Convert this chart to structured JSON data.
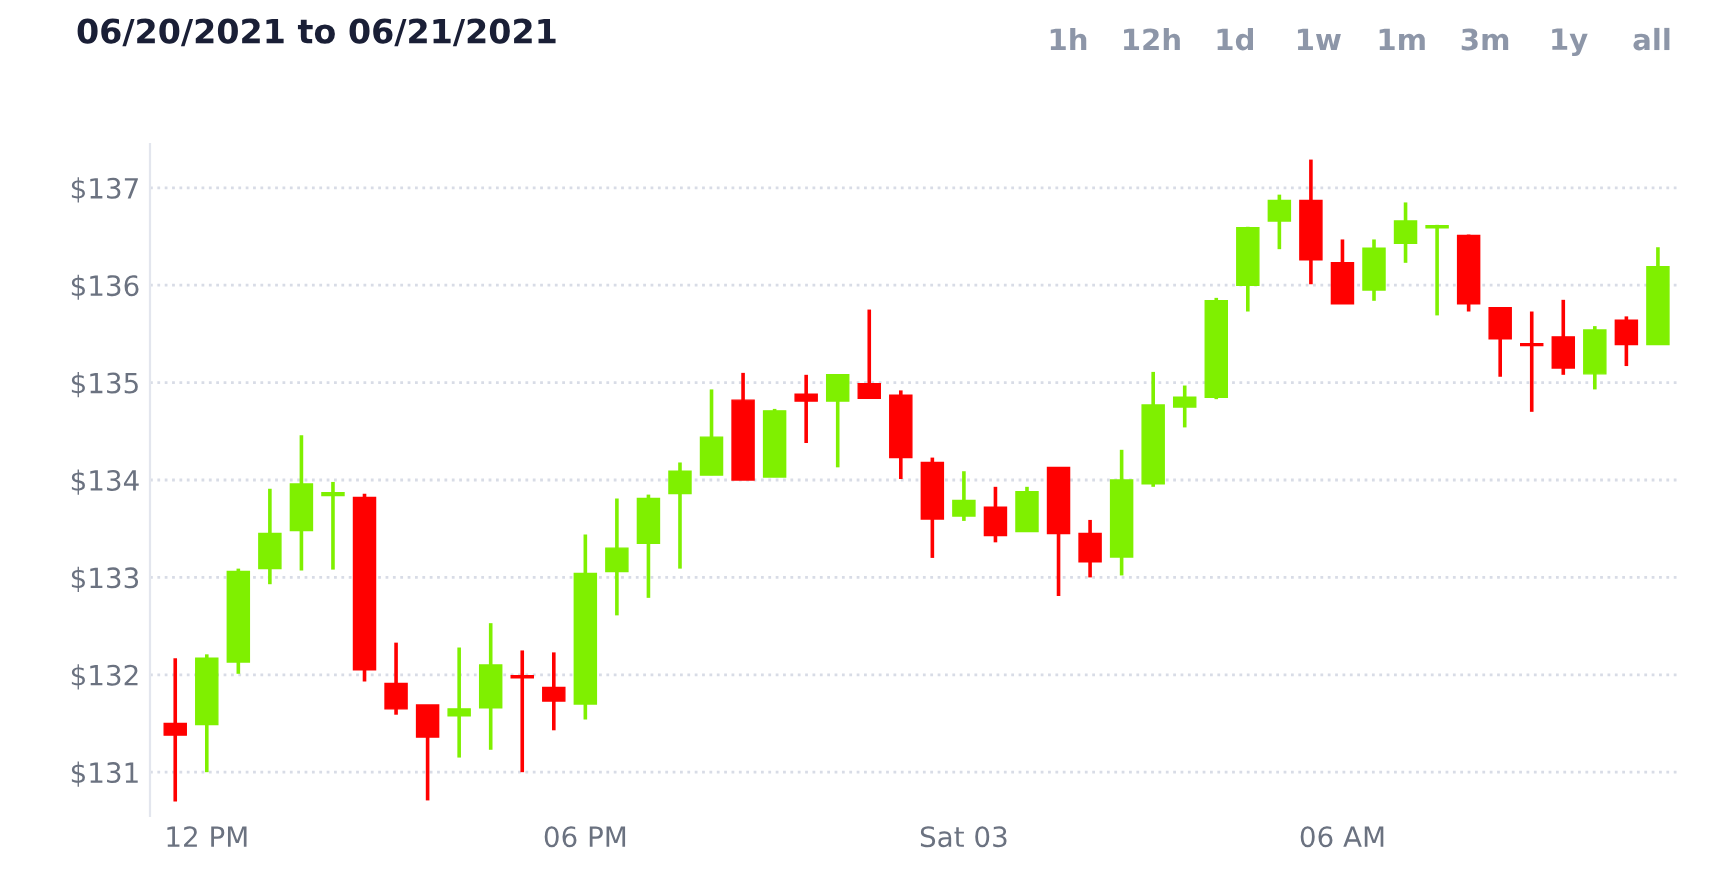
{
  "chart_data": {
    "type": "candlestick",
    "title": "06/20/2021 to 06/21/2021",
    "annotations": [
      "1h",
      "12h",
      "1d",
      "1w",
      "1m",
      "3m",
      "1y",
      "all"
    ],
    "x": [
      "2021-07-02T11:30",
      "2021-07-02T12:00",
      "2021-07-02T12:30",
      "2021-07-02T13:00",
      "2021-07-02T13:30",
      "2021-07-02T14:00",
      "2021-07-02T14:30",
      "2021-07-02T15:00",
      "2021-07-02T15:30",
      "2021-07-02T16:00",
      "2021-07-02T16:30",
      "2021-07-02T17:00",
      "2021-07-02T17:30",
      "2021-07-02T18:00",
      "2021-07-02T18:30",
      "2021-07-02T19:00",
      "2021-07-02T19:30",
      "2021-07-02T20:00",
      "2021-07-02T20:30",
      "2021-07-02T21:00",
      "2021-07-02T21:30",
      "2021-07-02T22:00",
      "2021-07-02T22:30",
      "2021-07-02T23:00",
      "2021-07-02T23:30",
      "2021-07-03T00:00",
      "2021-07-03T00:30",
      "2021-07-03T01:00",
      "2021-07-03T01:30",
      "2021-07-03T02:00",
      "2021-07-03T02:30",
      "2021-07-03T03:00",
      "2021-07-03T03:30",
      "2021-07-03T04:00",
      "2021-07-03T04:30",
      "2021-07-03T05:00",
      "2021-07-03T05:30",
      "2021-07-03T06:00",
      "2021-07-03T06:30",
      "2021-07-03T07:00",
      "2021-07-03T07:30",
      "2021-07-03T08:00",
      "2021-07-03T08:30",
      "2021-07-03T09:00",
      "2021-07-03T09:30",
      "2021-07-03T10:00",
      "2021-07-03T10:30",
      "2021-07-03T11:00"
    ],
    "ohlc": [
      [
        131.5,
        132.17,
        130.7,
        131.38
      ],
      [
        131.49,
        132.21,
        131.0,
        132.17
      ],
      [
        132.13,
        133.09,
        132.01,
        133.06
      ],
      [
        133.09,
        133.91,
        132.93,
        133.45
      ],
      [
        133.48,
        134.46,
        133.07,
        133.96
      ],
      [
        133.84,
        133.98,
        133.08,
        133.87
      ],
      [
        133.82,
        133.86,
        131.93,
        132.05
      ],
      [
        131.91,
        132.33,
        131.59,
        131.65
      ],
      [
        131.69,
        131.69,
        130.71,
        131.36
      ],
      [
        131.58,
        132.28,
        131.15,
        131.65
      ],
      [
        131.66,
        132.53,
        131.23,
        132.1
      ],
      [
        131.99,
        132.25,
        131.0,
        131.97
      ],
      [
        131.87,
        132.23,
        131.43,
        131.73
      ],
      [
        131.7,
        133.44,
        131.54,
        133.04
      ],
      [
        133.06,
        133.81,
        132.61,
        133.3
      ],
      [
        133.35,
        133.85,
        132.79,
        133.81
      ],
      [
        133.86,
        134.18,
        133.09,
        134.09
      ],
      [
        134.05,
        134.93,
        134.05,
        134.44
      ],
      [
        134.82,
        135.1,
        134.0,
        134.0
      ],
      [
        134.03,
        134.73,
        134.03,
        134.71
      ],
      [
        134.88,
        135.08,
        134.38,
        134.81
      ],
      [
        134.81,
        135.08,
        134.13,
        135.08
      ],
      [
        134.99,
        135.75,
        134.84,
        134.84
      ],
      [
        134.87,
        134.92,
        134.01,
        134.23
      ],
      [
        134.18,
        134.23,
        133.2,
        133.6
      ],
      [
        133.63,
        134.09,
        133.58,
        133.79
      ],
      [
        133.72,
        133.93,
        133.36,
        133.43
      ],
      [
        133.47,
        133.93,
        133.47,
        133.88
      ],
      [
        134.13,
        134.13,
        132.81,
        133.45
      ],
      [
        133.45,
        133.59,
        133.0,
        133.16
      ],
      [
        133.21,
        134.31,
        133.02,
        134.0
      ],
      [
        133.96,
        135.11,
        133.93,
        134.77
      ],
      [
        134.75,
        134.97,
        134.54,
        134.85
      ],
      [
        134.85,
        135.87,
        134.83,
        135.84
      ],
      [
        136.0,
        136.6,
        135.73,
        136.59
      ],
      [
        136.66,
        136.93,
        136.37,
        136.87
      ],
      [
        136.87,
        137.29,
        136.01,
        136.26
      ],
      [
        136.23,
        136.47,
        135.81,
        135.81
      ],
      [
        135.95,
        136.47,
        135.84,
        136.38
      ],
      [
        136.43,
        136.85,
        136.23,
        136.66
      ],
      [
        136.59,
        136.62,
        135.69,
        136.61
      ],
      [
        136.51,
        136.52,
        135.73,
        135.81
      ],
      [
        135.77,
        135.77,
        135.06,
        135.45
      ],
      [
        135.39,
        135.73,
        134.7,
        135.38
      ],
      [
        135.47,
        135.85,
        135.08,
        135.15
      ],
      [
        135.09,
        135.58,
        134.93,
        135.54
      ],
      [
        135.64,
        135.68,
        135.17,
        135.39
      ],
      [
        135.39,
        136.39,
        135.39,
        136.19
      ]
    ],
    "colors": [
      "#ff0000",
      "#7ff000",
      "#7ff000",
      "#7ff000",
      "#7ff000",
      "#7ff000",
      "#ff0000",
      "#ff0000",
      "#ff0000",
      "#7ff000",
      "#7ff000",
      "#ff0000",
      "#ff0000",
      "#7ff000",
      "#7ff000",
      "#7ff000",
      "#7ff000",
      "#7ff000",
      "#ff0000",
      "#7ff000",
      "#ff0000",
      "#7ff000",
      "#ff0000",
      "#ff0000",
      "#ff0000",
      "#7ff000",
      "#ff0000",
      "#7ff000",
      "#ff0000",
      "#ff0000",
      "#7ff000",
      "#7ff000",
      "#7ff000",
      "#7ff000",
      "#7ff000",
      "#7ff000",
      "#ff0000",
      "#ff0000",
      "#7ff000",
      "#7ff000",
      "#7ff000",
      "#ff0000",
      "#ff0000",
      "#ff0000",
      "#ff0000",
      "#7ff000",
      "#ff0000",
      "#7ff000"
    ],
    "xlim": [
      "2021-07-02T11:06",
      "2021-07-03T11:21"
    ],
    "xticks": [
      {
        "value": "2021-07-02T12:00",
        "label": "12 PM"
      },
      {
        "value": "2021-07-02T18:00",
        "label": "06 PM"
      },
      {
        "value": "2021-07-03T00:00",
        "label": "Sat 03"
      },
      {
        "value": "2021-07-03T06:00",
        "label": "06 AM"
      }
    ],
    "ylim": [
      130.55,
      137.45
    ],
    "yticks": [
      {
        "value": 131,
        "label": "$131"
      },
      {
        "value": 132,
        "label": "$132"
      },
      {
        "value": 133,
        "label": "$133"
      },
      {
        "value": 134,
        "label": "$134"
      },
      {
        "value": 135,
        "label": "$135"
      },
      {
        "value": 136,
        "label": "$136"
      },
      {
        "value": 137,
        "label": "$137"
      }
    ],
    "grid": "y"
  }
}
